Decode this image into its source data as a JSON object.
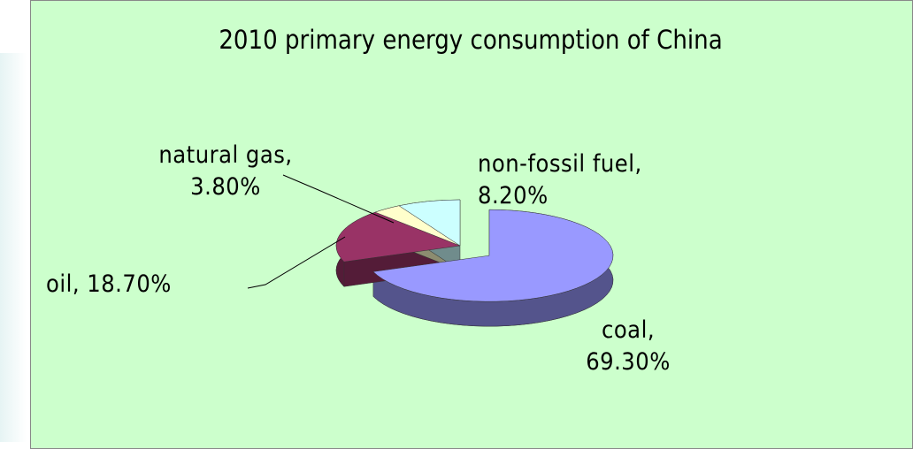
{
  "chart_data": {
    "type": "pie",
    "title": "2010 primary  energy consumption  of China",
    "values": [
      69.3,
      18.7,
      3.8,
      8.2
    ],
    "value_labels": [
      "coal, 69.30%",
      "oil, 18.70%",
      "natural gas, 3.80%",
      "non-fossil fuel, 8.20%"
    ],
    "colors": [
      "#9999ff",
      "#993366",
      "#ffffcc",
      "#ccffff"
    ]
  }
}
